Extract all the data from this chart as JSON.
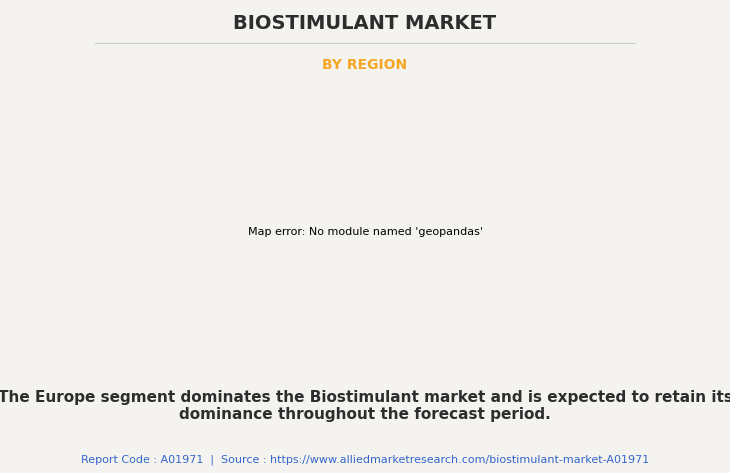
{
  "title": "BIOSTIMULANT MARKET",
  "subtitle": "BY REGION",
  "title_color": "#2d2d2d",
  "subtitle_color": "#f5a623",
  "background_color": "#f5f3ef",
  "map_land_color": "#90bc8c",
  "map_land_edgecolor": "#6aaad0",
  "map_shadow_color": "#888888",
  "map_highlight_color": "#efefef",
  "description_line1": "The Europe segment dominates the Biostimulant market and is expected to retain its",
  "description_line2": "dominance throughout the forecast period.",
  "report_code": "Report Code : A01971",
  "source_text": "Source : https://www.alliedmarketresearch.com/biostimulant-market-A01971",
  "desc_fontsize": 11,
  "source_fontsize": 8,
  "title_fontsize": 14,
  "subtitle_fontsize": 10
}
